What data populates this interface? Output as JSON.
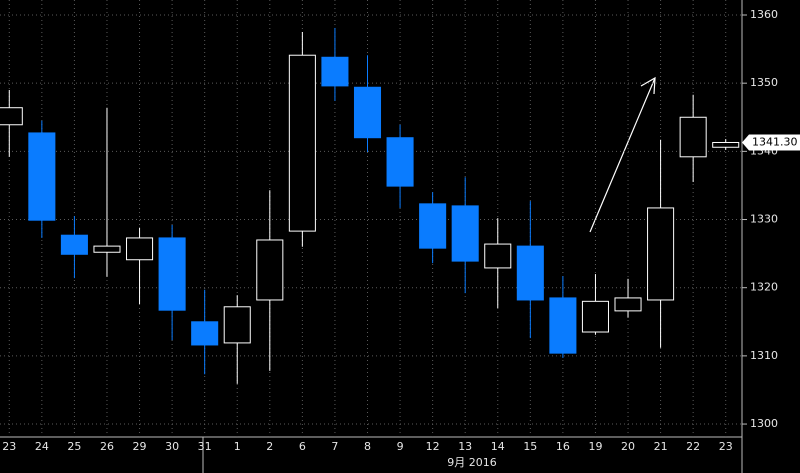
{
  "chart_data": {
    "type": "candlestick",
    "categories": [
      "23",
      "24",
      "25",
      "26",
      "29",
      "30",
      "31",
      "1",
      "2",
      "6",
      "7",
      "8",
      "9",
      "12",
      "13",
      "14",
      "15",
      "16",
      "19",
      "20",
      "21",
      "22",
      "23"
    ],
    "open": [
      1343.9,
      1342.7,
      1327.7,
      1325.2,
      1324.1,
      1327.3,
      1315.0,
      1311.9,
      1318.2,
      1328.3,
      1353.8,
      1349.4,
      1342.0,
      1332.3,
      1332.0,
      1322.9,
      1326.1,
      1318.5,
      1313.5,
      1316.6,
      1318.2,
      1339.2,
      1340.6
    ],
    "high": [
      1349.0,
      1344.5,
      1330.5,
      1346.4,
      1328.8,
      1329.2,
      1319.7,
      1318.9,
      1334.3,
      1357.5,
      1358.1,
      1354.1,
      1343.9,
      1334.0,
      1336.2,
      1330.2,
      1332.7,
      1321.7,
      1322.0,
      1321.3,
      1341.7,
      1348.3,
      1341.8
    ],
    "low": [
      1339.2,
      1327.3,
      1321.4,
      1321.6,
      1317.6,
      1312.3,
      1307.3,
      1305.9,
      1307.8,
      1326.0,
      1347.4,
      1339.9,
      1331.7,
      1323.6,
      1319.2,
      1317.0,
      1312.6,
      1309.7,
      1313.1,
      1315.6,
      1311.2,
      1335.5,
      1340.2
    ],
    "close": [
      1346.4,
      1329.9,
      1324.9,
      1326.1,
      1327.3,
      1316.7,
      1311.6,
      1317.2,
      1327.0,
      1354.1,
      1349.6,
      1342.0,
      1334.9,
      1325.8,
      1323.9,
      1326.4,
      1318.2,
      1310.4,
      1318.0,
      1318.5,
      1331.7,
      1345.0,
      1341.3
    ],
    "up_color": "#ffffff",
    "down_color": "#0a7cff",
    "x_label": "9月 2016",
    "last_price": {
      "value": 1341.3,
      "label": "1341.30"
    },
    "ylim": [
      1298.1,
      1362.2
    ],
    "yticks": [
      1300,
      1310,
      1320,
      1330,
      1340,
      1350,
      1360
    ],
    "grid": true
  }
}
